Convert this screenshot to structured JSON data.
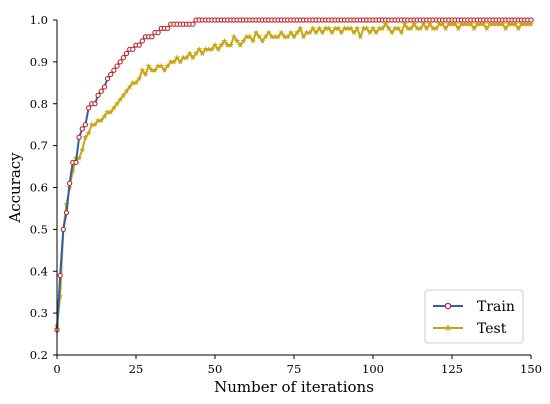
{
  "chart_data": {
    "type": "line",
    "xlabel": "Number of iterations",
    "ylabel": "Accuracy",
    "xlim": [
      0,
      150
    ],
    "ylim": [
      0.2,
      1.0
    ],
    "xticks": [
      0,
      25,
      50,
      75,
      100,
      125,
      150
    ],
    "yticks": [
      0.2,
      0.3,
      0.4,
      0.5,
      0.6,
      0.7,
      0.8,
      0.9,
      1.0
    ],
    "grid": false,
    "legend_position": "bottom-right",
    "series": [
      {
        "name": "Train",
        "line_color": "#2f5fa8",
        "marker_color": "#c0282a",
        "marker": "circle",
        "x": [
          0,
          1,
          2,
          3,
          4,
          5,
          6,
          7,
          8,
          9,
          10,
          11,
          12,
          13,
          14,
          15,
          16,
          17,
          18,
          19,
          20,
          21,
          22,
          23,
          24,
          25,
          26,
          27,
          28,
          29,
          30,
          31,
          32,
          33,
          34,
          35,
          36,
          37,
          38,
          39,
          40,
          41,
          42,
          43,
          44,
          45,
          46,
          47,
          48,
          49,
          50,
          51,
          52,
          53,
          54,
          55,
          56,
          57,
          58,
          59,
          60,
          61,
          62,
          63,
          64,
          65,
          66,
          67,
          68,
          69,
          70,
          71,
          72,
          73,
          74,
          75,
          76,
          77,
          78,
          79,
          80,
          81,
          82,
          83,
          84,
          85,
          86,
          87,
          88,
          89,
          90,
          91,
          92,
          93,
          94,
          95,
          96,
          97,
          98,
          99,
          100,
          101,
          102,
          103,
          104,
          105,
          106,
          107,
          108,
          109,
          110,
          111,
          112,
          113,
          114,
          115,
          116,
          117,
          118,
          119,
          120,
          121,
          122,
          123,
          124,
          125,
          126,
          127,
          128,
          129,
          130,
          131,
          132,
          133,
          134,
          135,
          136,
          137,
          138,
          139,
          140,
          141,
          142,
          143,
          144,
          145,
          146,
          147,
          148,
          149,
          150
        ],
        "values": [
          0.26,
          0.39,
          0.5,
          0.54,
          0.61,
          0.66,
          0.66,
          0.72,
          0.74,
          0.75,
          0.79,
          0.8,
          0.8,
          0.82,
          0.83,
          0.84,
          0.86,
          0.87,
          0.88,
          0.89,
          0.9,
          0.91,
          0.92,
          0.93,
          0.93,
          0.94,
          0.94,
          0.95,
          0.96,
          0.96,
          0.96,
          0.97,
          0.97,
          0.98,
          0.98,
          0.98,
          0.99,
          0.99,
          0.99,
          0.99,
          0.99,
          0.99,
          0.99,
          0.99,
          1.0,
          1.0,
          1.0,
          1.0,
          1.0,
          1.0,
          1.0,
          1.0,
          1.0,
          1.0,
          1.0,
          1.0,
          1.0,
          1.0,
          1.0,
          1.0,
          1.0,
          1.0,
          1.0,
          1.0,
          1.0,
          1.0,
          1.0,
          1.0,
          1.0,
          1.0,
          1.0,
          1.0,
          1.0,
          1.0,
          1.0,
          1.0,
          1.0,
          1.0,
          1.0,
          1.0,
          1.0,
          1.0,
          1.0,
          1.0,
          1.0,
          1.0,
          1.0,
          1.0,
          1.0,
          1.0,
          1.0,
          1.0,
          1.0,
          1.0,
          1.0,
          1.0,
          1.0,
          1.0,
          1.0,
          1.0,
          1.0,
          1.0,
          1.0,
          1.0,
          1.0,
          1.0,
          1.0,
          1.0,
          1.0,
          1.0,
          1.0,
          1.0,
          1.0,
          1.0,
          1.0,
          1.0,
          1.0,
          1.0,
          1.0,
          1.0,
          1.0,
          1.0,
          1.0,
          1.0,
          1.0,
          1.0,
          1.0,
          1.0,
          1.0,
          1.0,
          1.0,
          1.0,
          1.0,
          1.0,
          1.0,
          1.0,
          1.0,
          1.0,
          1.0,
          1.0,
          1.0,
          1.0,
          1.0,
          1.0,
          1.0,
          1.0,
          1.0,
          1.0,
          1.0,
          1.0,
          1.0
        ]
      },
      {
        "name": "Test",
        "line_color": "#c8a512",
        "marker_color": "#c8a512",
        "marker": "star",
        "x": [
          0,
          1,
          2,
          3,
          4,
          5,
          6,
          7,
          8,
          9,
          10,
          11,
          12,
          13,
          14,
          15,
          16,
          17,
          18,
          19,
          20,
          21,
          22,
          23,
          24,
          25,
          26,
          27,
          28,
          29,
          30,
          31,
          32,
          33,
          34,
          35,
          36,
          37,
          38,
          39,
          40,
          41,
          42,
          43,
          44,
          45,
          46,
          47,
          48,
          49,
          50,
          51,
          52,
          53,
          54,
          55,
          56,
          57,
          58,
          59,
          60,
          61,
          62,
          63,
          64,
          65,
          66,
          67,
          68,
          69,
          70,
          71,
          72,
          73,
          74,
          75,
          76,
          77,
          78,
          79,
          80,
          81,
          82,
          83,
          84,
          85,
          86,
          87,
          88,
          89,
          90,
          91,
          92,
          93,
          94,
          95,
          96,
          97,
          98,
          99,
          100,
          101,
          102,
          103,
          104,
          105,
          106,
          107,
          108,
          109,
          110,
          111,
          112,
          113,
          114,
          115,
          116,
          117,
          118,
          119,
          120,
          121,
          122,
          123,
          124,
          125,
          126,
          127,
          128,
          129,
          130,
          131,
          132,
          133,
          134,
          135,
          136,
          137,
          138,
          139,
          140,
          141,
          142,
          143,
          144,
          145,
          146,
          147,
          148,
          149,
          150
        ],
        "values": [
          0.27,
          0.34,
          0.5,
          0.56,
          0.6,
          0.64,
          0.67,
          0.67,
          0.69,
          0.72,
          0.73,
          0.75,
          0.75,
          0.76,
          0.76,
          0.77,
          0.78,
          0.78,
          0.79,
          0.8,
          0.81,
          0.82,
          0.83,
          0.84,
          0.85,
          0.85,
          0.86,
          0.88,
          0.87,
          0.89,
          0.88,
          0.88,
          0.89,
          0.89,
          0.88,
          0.89,
          0.9,
          0.9,
          0.91,
          0.9,
          0.91,
          0.91,
          0.92,
          0.91,
          0.92,
          0.93,
          0.92,
          0.93,
          0.93,
          0.93,
          0.94,
          0.93,
          0.94,
          0.95,
          0.94,
          0.94,
          0.96,
          0.95,
          0.94,
          0.95,
          0.96,
          0.96,
          0.95,
          0.97,
          0.96,
          0.95,
          0.96,
          0.97,
          0.96,
          0.96,
          0.96,
          0.97,
          0.96,
          0.96,
          0.97,
          0.96,
          0.97,
          0.98,
          0.96,
          0.97,
          0.97,
          0.98,
          0.97,
          0.98,
          0.97,
          0.98,
          0.98,
          0.97,
          0.98,
          0.98,
          0.97,
          0.98,
          0.98,
          0.98,
          0.97,
          0.98,
          0.96,
          0.98,
          0.98,
          0.97,
          0.98,
          0.97,
          0.98,
          0.98,
          0.99,
          0.98,
          0.97,
          0.98,
          0.98,
          0.97,
          0.99,
          0.98,
          0.98,
          0.99,
          0.98,
          0.98,
          0.99,
          0.98,
          0.99,
          0.98,
          0.98,
          0.99,
          0.99,
          0.98,
          0.99,
          0.99,
          0.99,
          0.98,
          0.99,
          0.99,
          0.99,
          0.99,
          0.98,
          0.99,
          0.99,
          0.99,
          0.98,
          0.99,
          0.99,
          0.99,
          0.99,
          0.99,
          0.98,
          0.99,
          0.99,
          0.99,
          0.98,
          0.99,
          0.99,
          0.99,
          0.99
        ]
      }
    ]
  }
}
